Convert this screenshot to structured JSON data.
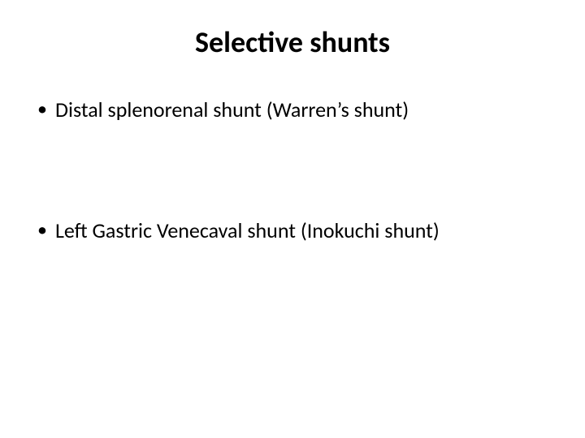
{
  "slide": {
    "title": "Selective shunts",
    "bullets": [
      "Distal splenorenal shunt (Warren’s shunt)",
      "Left Gastric Venecaval shunt (Inokuchi shunt)"
    ]
  },
  "styling": {
    "background_color": "#ffffff",
    "text_color": "#000000",
    "title_fontsize": 36,
    "title_fontweight": "bold",
    "bullet_fontsize": 26,
    "bullet_marker": "•",
    "font_family": "Calibri"
  }
}
